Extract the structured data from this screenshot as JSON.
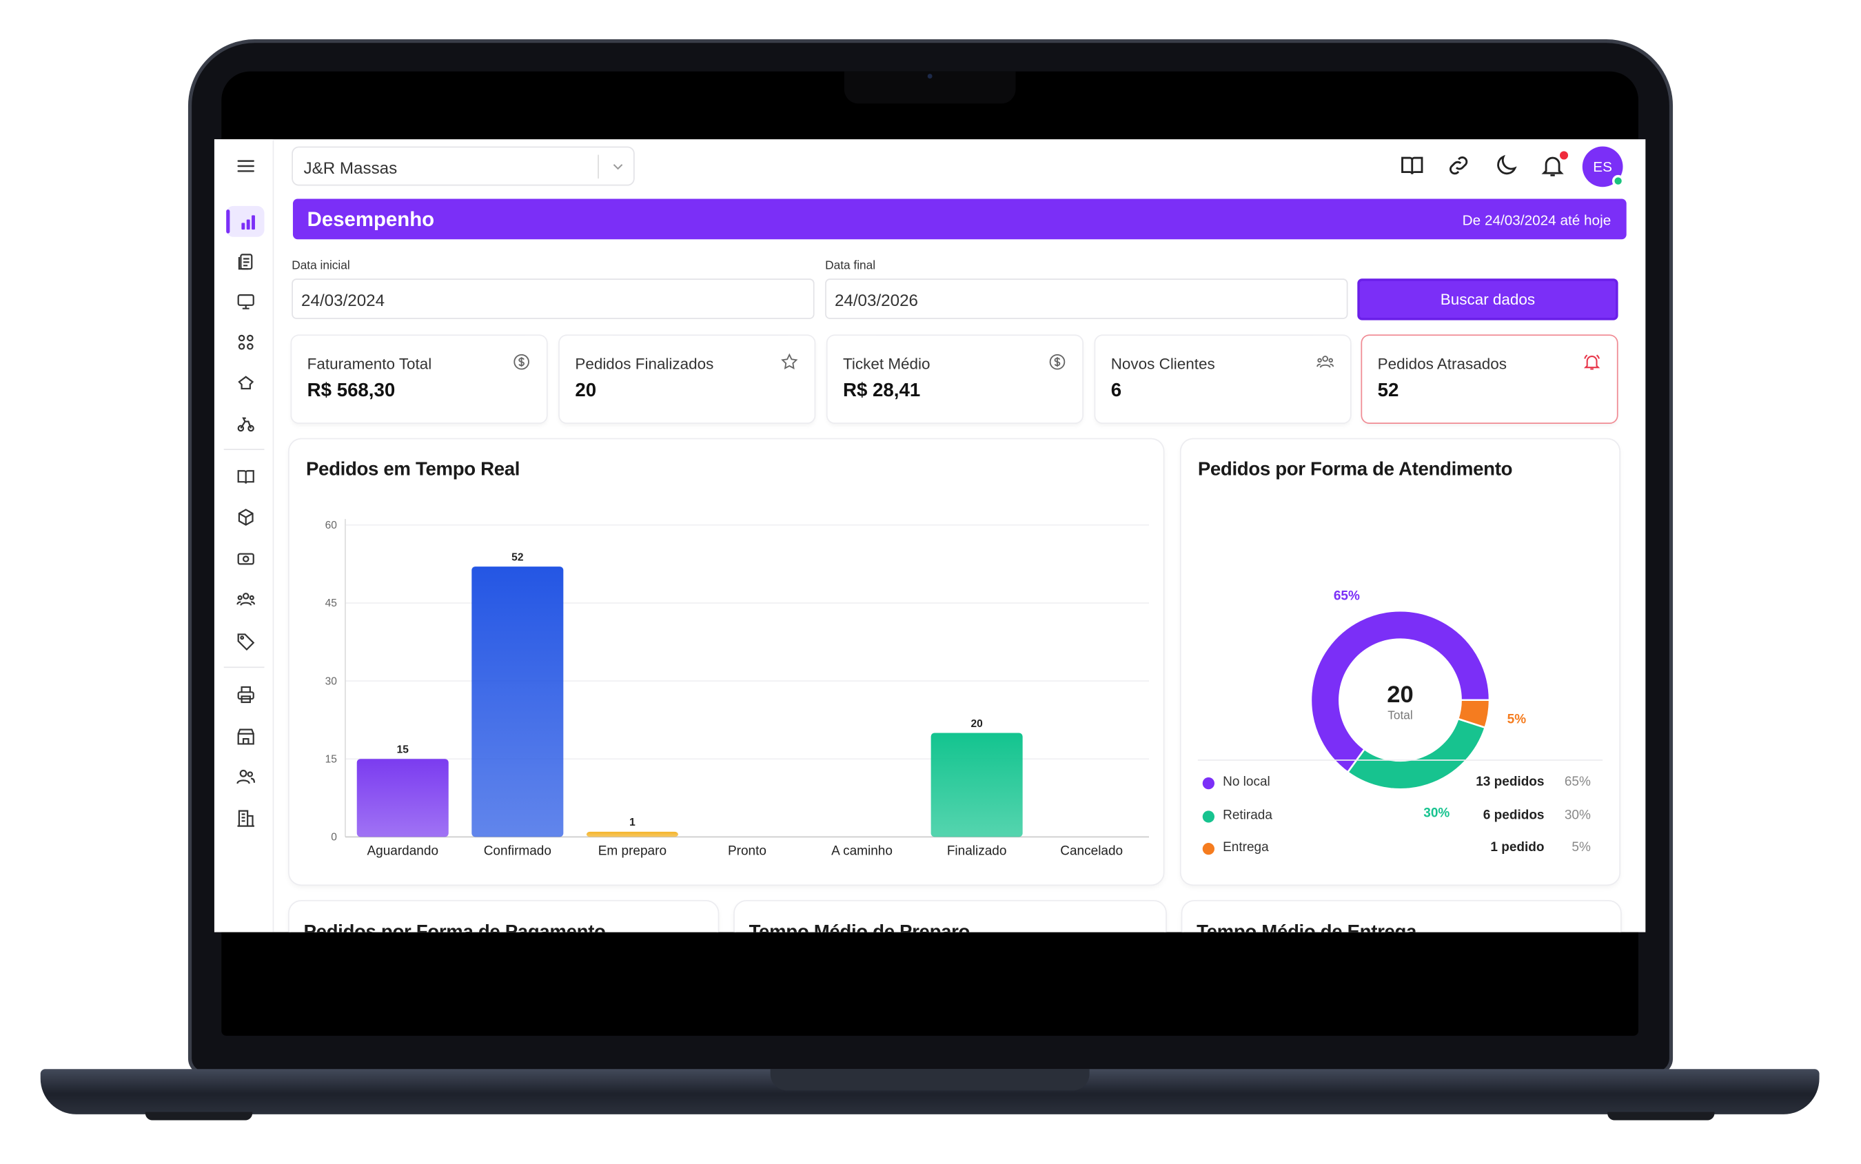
{
  "topbar": {
    "store_name": "J&R Massas"
  },
  "user": {
    "initials": "ES"
  },
  "banner": {
    "title": "Desempenho",
    "range": "De 24/03/2024 até hoje"
  },
  "filters": {
    "start_label": "Data inicial",
    "start_value": "24/03/2024",
    "end_label": "Data final",
    "end_value": "24/03/2026",
    "search_button": "Buscar dados"
  },
  "stats": [
    {
      "label": "Faturamento Total",
      "value": "R$ 568,30",
      "icon": "dollar-circle-icon"
    },
    {
      "label": "Pedidos Finalizados",
      "value": "20",
      "icon": "star-icon"
    },
    {
      "label": "Ticket Médio",
      "value": "R$ 28,41",
      "icon": "dollar-circle-icon"
    },
    {
      "label": "Novos Clientes",
      "value": "6",
      "icon": "users-icon"
    },
    {
      "label": "Pedidos Atrasados",
      "value": "52",
      "icon": "bell-alert-icon"
    }
  ],
  "realtime": {
    "title": "Pedidos em Tempo Real"
  },
  "atendimento": {
    "title": "Pedidos por Forma de Atendimento",
    "center_value": "20",
    "center_label": "Total",
    "legend": [
      {
        "label": "No local",
        "count": "13 pedidos",
        "pct": "65%",
        "color": "#7b2ff7"
      },
      {
        "label": "Retirada",
        "count": "6 pedidos",
        "pct": "30%",
        "color": "#17c38f"
      },
      {
        "label": "Entrega",
        "count": "1 pedido",
        "pct": "5%",
        "color": "#f57c1f"
      }
    ]
  },
  "bottom_panels": {
    "pagamento": "Pedidos por Forma de Pagamento",
    "preparo": "Tempo Médio de Preparo",
    "entrega": "Tempo Médio de Entrega"
  },
  "sidebar_icons": [
    "menu-icon",
    "dashboard-chart-icon",
    "clipboard-icon",
    "monitor-icon",
    "grid-icon",
    "chef-hat-icon",
    "delivery-icon",
    "book-icon",
    "box-icon",
    "cash-icon",
    "users-group-icon",
    "tag-icon",
    "printer-icon",
    "store-icon",
    "users-icon",
    "building-icon"
  ],
  "chart_data": [
    {
      "type": "bar",
      "title": "Pedidos em Tempo Real",
      "categories": [
        "Aguardando",
        "Confirmado",
        "Em preparo",
        "Pronto",
        "A caminho",
        "Finalizado",
        "Cancelado"
      ],
      "values": [
        15,
        52,
        1,
        0,
        0,
        20,
        0
      ],
      "data_labels": [
        "15",
        "52",
        "1",
        "",
        "",
        "20",
        ""
      ],
      "colors": [
        "#7b3cf0",
        "#2456e4",
        "#f4b42a",
        "#cccccc",
        "#cccccc",
        "#13c48f",
        "#cccccc"
      ],
      "yticks": [
        "0",
        "15",
        "30",
        "45",
        "60"
      ],
      "ylim": [
        0,
        60
      ],
      "grid": true
    },
    {
      "type": "pie",
      "title": "Pedidos por Forma de Atendimento",
      "categories": [
        "No local",
        "Retirada",
        "Entrega"
      ],
      "values": [
        13,
        6,
        1
      ],
      "percent_labels": [
        "65%",
        "30%",
        "5%"
      ],
      "colors": [
        "#7b2ff7",
        "#17c38f",
        "#f57c1f"
      ]
    }
  ]
}
